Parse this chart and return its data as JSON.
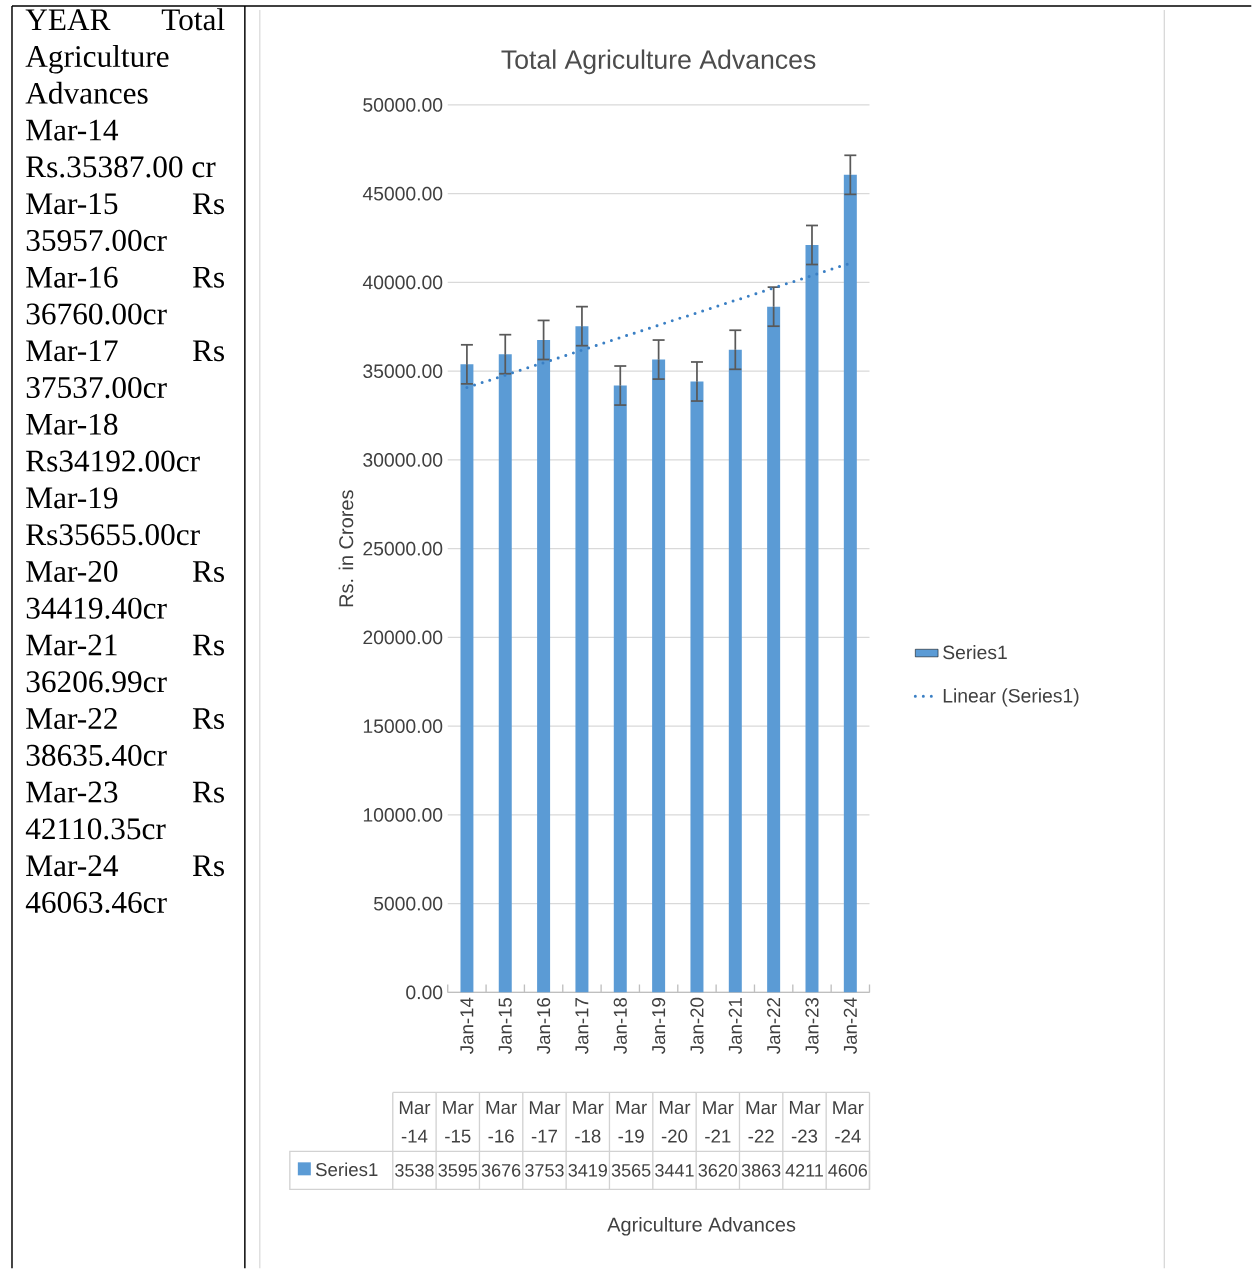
{
  "chart_data": [
    {
      "type": "other",
      "annotations": [
        "YEAR Total Agriculture Advances",
        "Mar-14 Rs.35387.00 cr",
        "Mar-15 Rs 35957.00cr",
        "Mar-16 Rs 36760.00cr",
        "Mar-17 Rs 37537.00cr",
        "Mar-18 Rs34192.00cr",
        "Mar-19 Rs35655.00cr",
        "Mar-20 Rs 34419.40cr",
        "Mar-21 Rs 36206.99cr",
        "Mar-22 Rs 38635.40cr",
        "Mar-23 Rs 42110.35cr",
        "Mar-24 Rs 46063.46cr"
      ]
    },
    {
      "type": "bar",
      "title": "Total Agriculture Advances",
      "ylabel": "Rs. in Crores",
      "categories": [
        "Jan-14",
        "Jan-15",
        "Jan-16",
        "Jan-17",
        "Jan-18",
        "Jan-19",
        "Jan-20",
        "Jan-21",
        "Jan-22",
        "Jan-23",
        "Jan-24"
      ],
      "series": [
        {
          "name": "Series1",
          "color": "#5b9bd5",
          "values": [
            35387,
            35957,
            36760,
            37537,
            34192,
            35655,
            34419.4,
            36206.99,
            38635.4,
            42110.35,
            46063.46
          ],
          "errors": [
            1100,
            1100,
            1100,
            1100,
            1100,
            1100,
            1100,
            1100,
            1100,
            1100,
            1100
          ]
        },
        {
          "name": "Linear (Series1)",
          "type": "line",
          "line_style": "dotted",
          "color": "#3a7fc4",
          "values": [
            34080,
            34780,
            35480,
            36180,
            36890,
            37590,
            38290,
            38990,
            39690,
            40390,
            41090
          ]
        }
      ],
      "ylim": [
        0,
        50000
      ],
      "yticks": [
        {
          "value": 0,
          "label": "0.00"
        },
        {
          "value": 5000,
          "label": "5000.00"
        },
        {
          "value": 10000,
          "label": "10000.00"
        },
        {
          "value": 15000,
          "label": "15000.00"
        },
        {
          "value": 20000,
          "label": "20000.00"
        },
        {
          "value": 25000,
          "label": "25000.00"
        },
        {
          "value": 30000,
          "label": "30000.00"
        },
        {
          "value": 35000,
          "label": "35000.00"
        },
        {
          "value": 40000,
          "label": "40000.00"
        },
        {
          "value": 45000,
          "label": "45000.00"
        },
        {
          "value": 50000,
          "label": "50000.00"
        }
      ],
      "grid": "y",
      "legend": "right",
      "annotations": [
        "Mar -14",
        "Mar -15",
        "Mar -16",
        "Mar -17",
        "Mar -18",
        "Mar -19",
        "Mar -20",
        "Mar -21",
        "Mar -22",
        "Mar -23",
        "Mar -24",
        "3538",
        "3595",
        "3676",
        "3753",
        "3419",
        "3565",
        "3441",
        "3620",
        "3863",
        "4211",
        "4606",
        "Agriculture Advances"
      ]
    }
  ]
}
